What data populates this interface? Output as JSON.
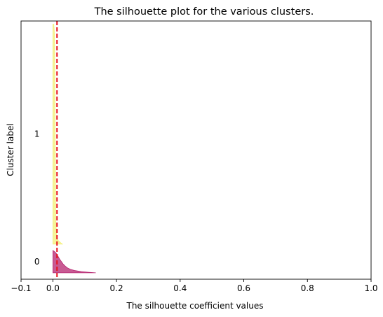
{
  "chart_data": {
    "type": "area",
    "title": "The silhouette plot for the various clusters.",
    "xlabel": "The silhouette coefficient values",
    "ylabel": "Cluster label",
    "xlim": [
      -0.1,
      1.0
    ],
    "ylim": [
      0,
      405
    ],
    "xticks": [
      -0.1,
      0.0,
      0.2,
      0.4,
      0.6,
      0.8,
      1.0
    ],
    "xtick_labels": [
      "−0.1",
      "0.0",
      "0.2",
      "0.4",
      "0.6",
      "0.8",
      "1.0"
    ],
    "grid": false,
    "legend": "none",
    "clusters": [
      {
        "label": "0",
        "color": "#b5236f",
        "y_lower": 10,
        "y_upper": 45,
        "profile": [
          [
            0.135,
            0
          ],
          [
            0.11,
            1
          ],
          [
            0.09,
            2
          ],
          [
            0.07,
            3.5
          ],
          [
            0.055,
            5.5
          ],
          [
            0.045,
            8
          ],
          [
            0.038,
            11
          ],
          [
            0.032,
            14
          ],
          [
            0.027,
            17.5
          ],
          [
            0.022,
            21
          ],
          [
            0.018,
            24.5
          ],
          [
            0.014,
            28
          ],
          [
            0.01,
            31
          ],
          [
            0.005,
            33.5
          ],
          [
            0.0,
            35
          ]
        ]
      },
      {
        "label": "1",
        "color": "#f3f07a",
        "y_lower": 55,
        "y_upper": 400,
        "profile": [
          [
            0.03,
            0
          ],
          [
            0.025,
            2
          ],
          [
            0.018,
            5
          ],
          [
            0.012,
            10
          ],
          [
            0.009,
            40
          ],
          [
            0.008,
            120
          ],
          [
            0.007,
            200
          ],
          [
            0.006,
            280
          ],
          [
            0.005,
            330
          ],
          [
            0.003,
            345
          ]
        ]
      }
    ],
    "average_line": {
      "x": 0.013,
      "color": "#e8101a",
      "style": "dashed"
    }
  }
}
